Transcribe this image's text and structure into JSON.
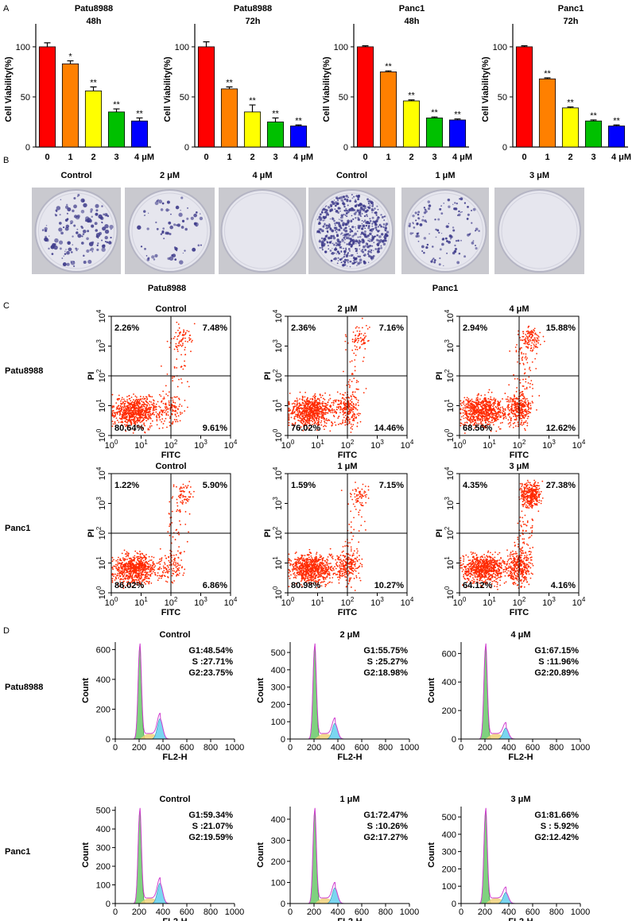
{
  "panel_labels": [
    "A",
    "B",
    "C",
    "D"
  ],
  "chart_data": [
    {
      "type": "bar",
      "title": "Patu8988",
      "subtitle": "48h",
      "y_label": "Cell Viability(%)",
      "categories": [
        "0",
        "1",
        "2",
        "3",
        "4 μM"
      ],
      "values": [
        100,
        83,
        56,
        35,
        26
      ],
      "errors": [
        4,
        3,
        4,
        3,
        3
      ],
      "annotations": [
        null,
        "*",
        "**",
        "**",
        "**"
      ],
      "colors": [
        "#ff0000",
        "#ff8000",
        "#ffff00",
        "#00c000",
        "#0000ff"
      ],
      "ylim": [
        0,
        115
      ],
      "yticks": [
        0,
        50,
        100
      ]
    },
    {
      "type": "bar",
      "title": "Patu8988",
      "subtitle": "72h",
      "y_label": "Cell Viability(%)",
      "categories": [
        "0",
        "1",
        "2",
        "3",
        "4 μM"
      ],
      "values": [
        100,
        58,
        35,
        25,
        21
      ],
      "errors": [
        5,
        2,
        7,
        4,
        1
      ],
      "annotations": [
        null,
        "**",
        "**",
        "**",
        "**"
      ],
      "colors": [
        "#ff0000",
        "#ff8000",
        "#ffff00",
        "#00c000",
        "#0000ff"
      ],
      "ylim": [
        0,
        115
      ],
      "yticks": [
        0,
        50,
        100
      ]
    },
    {
      "type": "bar",
      "title": "Panc1",
      "subtitle": "48h",
      "y_label": "Cell Viability(%)",
      "categories": [
        "0",
        "1",
        "2",
        "3",
        "4 μM"
      ],
      "values": [
        100,
        75,
        46,
        29,
        27
      ],
      "errors": [
        1,
        1,
        1,
        1,
        1
      ],
      "annotations": [
        null,
        "**",
        "**",
        "**",
        "**"
      ],
      "colors": [
        "#ff0000",
        "#ff8000",
        "#ffff00",
        "#00c000",
        "#0000ff"
      ],
      "ylim": [
        0,
        115
      ],
      "yticks": [
        0,
        50,
        100
      ]
    },
    {
      "type": "bar",
      "title": "Panc1",
      "subtitle": "72h",
      "y_label": "Cell Viability(%)",
      "categories": [
        "0",
        "1",
        "2",
        "3",
        "4 μM"
      ],
      "values": [
        100,
        68,
        39,
        26,
        21
      ],
      "errors": [
        1,
        1,
        1,
        1,
        1
      ],
      "annotations": [
        null,
        "**",
        "**",
        "**",
        "**"
      ],
      "colors": [
        "#ff0000",
        "#ff8000",
        "#ffff00",
        "#00c000",
        "#0000ff"
      ],
      "ylim": [
        0,
        115
      ],
      "yticks": [
        0,
        50,
        100
      ]
    }
  ],
  "colony": {
    "groups": [
      {
        "name": "Patu8988",
        "plates": [
          "Control",
          "2 μM",
          "4 μM"
        ]
      },
      {
        "name": "Panc1",
        "plates": [
          "Control",
          "1 μM",
          "3 μM"
        ]
      }
    ]
  },
  "apoptosis": {
    "x_label": "FITC",
    "y_label": "PI",
    "tick_base": "10",
    "tick_exponents": [
      "0",
      "1",
      "2",
      "3",
      "4"
    ],
    "rows": [
      {
        "name": "Patu8988",
        "plots": [
          {
            "title": "Control",
            "quadrants": [
              "2.26%",
              "7.48%",
              "80.64%",
              "9.61%"
            ]
          },
          {
            "title": "2 μM",
            "quadrants": [
              "2.36%",
              "7.16%",
              "76.02%",
              "14.46%"
            ]
          },
          {
            "title": "4 μM",
            "quadrants": [
              "2.94%",
              "15.88%",
              "68.56%",
              "12.62%"
            ]
          }
        ]
      },
      {
        "name": "Panc1",
        "plots": [
          {
            "title": "Control",
            "quadrants": [
              "1.22%",
              "5.90%",
              "86.02%",
              "6.86%"
            ]
          },
          {
            "title": "1 μM",
            "quadrants": [
              "1.59%",
              "7.15%",
              "80.98%",
              "10.27%"
            ]
          },
          {
            "title": "3 μM",
            "quadrants": [
              "4.35%",
              "27.38%",
              "64.12%",
              "4.16%"
            ]
          }
        ]
      }
    ]
  },
  "cell_cycle": {
    "x_label": "FL2-H",
    "y_label": "Count",
    "xlim": [
      0,
      1000
    ],
    "xticks": [
      0,
      200,
      400,
      600,
      800,
      1000
    ],
    "rows": [
      {
        "name": "Patu8988",
        "plots": [
          {
            "title": "Control",
            "stats": [
              "G1:48.54%",
              "S :27.71%",
              "G2:23.75%"
            ],
            "ylim": [
              0,
              650
            ],
            "yticks": [
              0,
              200,
              400,
              600
            ]
          },
          {
            "title": "2 μM",
            "stats": [
              "G1:55.75%",
              "S :25.27%",
              "G2:18.98%"
            ],
            "ylim": [
              0,
              560
            ],
            "yticks": [
              0,
              100,
              200,
              300,
              400,
              500
            ]
          },
          {
            "title": "4 μM",
            "stats": [
              "G1:67.15%",
              "S :11.96%",
              "G2:20.89%"
            ],
            "ylim": [
              0,
              680
            ],
            "yticks": [
              0,
              200,
              400,
              600
            ]
          }
        ]
      },
      {
        "name": "Panc1",
        "plots": [
          {
            "title": "Control",
            "stats": [
              "G1:59.34%",
              "S :21.07%",
              "G2:19.59%"
            ],
            "ylim": [
              0,
              520
            ],
            "yticks": [
              0,
              100,
              200,
              300,
              400,
              500
            ]
          },
          {
            "title": "1 μM",
            "stats": [
              "G1:72.47%",
              "S :10.26%",
              "G2:17.27%"
            ],
            "ylim": [
              0,
              460
            ],
            "yticks": [
              0,
              100,
              200,
              300,
              400
            ]
          },
          {
            "title": "3 μM",
            "stats": [
              "G1:81.66%",
              "S : 5.92%",
              "G2:12.42%"
            ],
            "ylim": [
              0,
              560
            ],
            "yticks": [
              0,
              100,
              200,
              300,
              400,
              500
            ]
          }
        ]
      }
    ]
  }
}
